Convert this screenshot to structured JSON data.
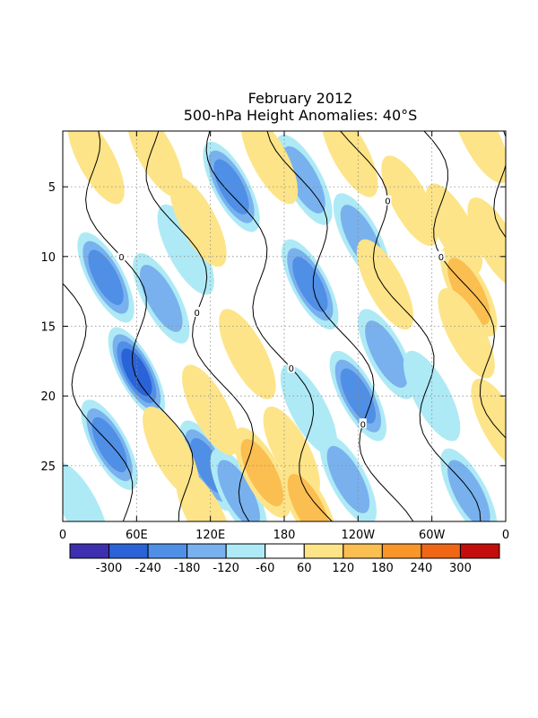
{
  "chart_data": {
    "type": "heatmap",
    "title": "February 2012",
    "subtitle": "500-hPa Height Anomalies: 40°S",
    "x_ticks": [
      "0",
      "60E",
      "120E",
      "180",
      "120W",
      "60W",
      "0"
    ],
    "x_tick_values": [
      0,
      60,
      120,
      180,
      240,
      300,
      360
    ],
    "y_ticks": [
      "5",
      "10",
      "15",
      "20",
      "25"
    ],
    "y_tick_values": [
      5,
      10,
      15,
      20,
      25
    ],
    "xlim": [
      0,
      360
    ],
    "ylim": [
      1,
      29
    ],
    "y_reversed": true,
    "grid": true,
    "grid_style": "dotted",
    "colorbar": {
      "labels": [
        "-300",
        "-240",
        "-180",
        "-120",
        "-60",
        "60",
        "120",
        "180",
        "240",
        "300"
      ],
      "levels": [
        -300,
        -240,
        -180,
        -120,
        -60,
        60,
        120,
        180,
        240,
        300
      ],
      "colors": [
        "#3d2fb0",
        "#2a63d8",
        "#4f8fe6",
        "#79b1ee",
        "#aeeaf6",
        "#ffffff",
        "#fde488",
        "#fbbe50",
        "#f8962a",
        "#ee6616",
        "#c40d0d"
      ],
      "placement": "bottom"
    },
    "contour_level": "0",
    "anomalies": [
      {
        "lon": 35,
        "day": 11.5,
        "value": -200
      },
      {
        "lon": 60,
        "day": 18.3,
        "value": -240
      },
      {
        "lon": 38,
        "day": 23.5,
        "value": -220
      },
      {
        "lon": 80,
        "day": 13,
        "value": -120
      },
      {
        "lon": 100,
        "day": 9.5,
        "value": -60
      },
      {
        "lon": 137,
        "day": 5,
        "value": -200
      },
      {
        "lon": 118,
        "day": 25,
        "value": -180
      },
      {
        "lon": 143,
        "day": 27,
        "value": -130
      },
      {
        "lon": 201,
        "day": 12,
        "value": -200
      },
      {
        "lon": 196,
        "day": 4.5,
        "value": -130
      },
      {
        "lon": 200,
        "day": 21,
        "value": -70
      },
      {
        "lon": 243,
        "day": 8.7,
        "value": -150
      },
      {
        "lon": 240,
        "day": 20,
        "value": -180
      },
      {
        "lon": 263,
        "day": 17,
        "value": -150
      },
      {
        "lon": 232,
        "day": 26,
        "value": -170
      },
      {
        "lon": 300,
        "day": 20,
        "value": -80
      },
      {
        "lon": 330,
        "day": 27,
        "value": -160
      },
      {
        "lon": 14,
        "day": 28,
        "value": -100
      },
      {
        "lon": 27,
        "day": 3,
        "value": 90
      },
      {
        "lon": 75,
        "day": 2.5,
        "value": 90
      },
      {
        "lon": 110,
        "day": 7.5,
        "value": 80
      },
      {
        "lon": 168,
        "day": 3,
        "value": 80
      },
      {
        "lon": 150,
        "day": 17,
        "value": 80
      },
      {
        "lon": 120,
        "day": 21,
        "value": 70
      },
      {
        "lon": 88,
        "day": 24,
        "value": 90
      },
      {
        "lon": 115,
        "day": 28.5,
        "value": 90
      },
      {
        "lon": 162,
        "day": 25.5,
        "value": 150
      },
      {
        "lon": 186,
        "day": 24,
        "value": 100
      },
      {
        "lon": 200,
        "day": 28,
        "value": 140
      },
      {
        "lon": 233,
        "day": 2.5,
        "value": 80
      },
      {
        "lon": 282,
        "day": 6,
        "value": 90
      },
      {
        "lon": 318,
        "day": 8,
        "value": 90
      },
      {
        "lon": 352,
        "day": 9,
        "value": 110
      },
      {
        "lon": 330,
        "day": 12.5,
        "value": 150
      },
      {
        "lon": 328,
        "day": 15.5,
        "value": 110
      },
      {
        "lon": 340,
        "day": 1.5,
        "value": 110
      },
      {
        "lon": 262,
        "day": 12,
        "value": 70
      },
      {
        "lon": 355,
        "day": 22,
        "value": 90
      }
    ]
  }
}
